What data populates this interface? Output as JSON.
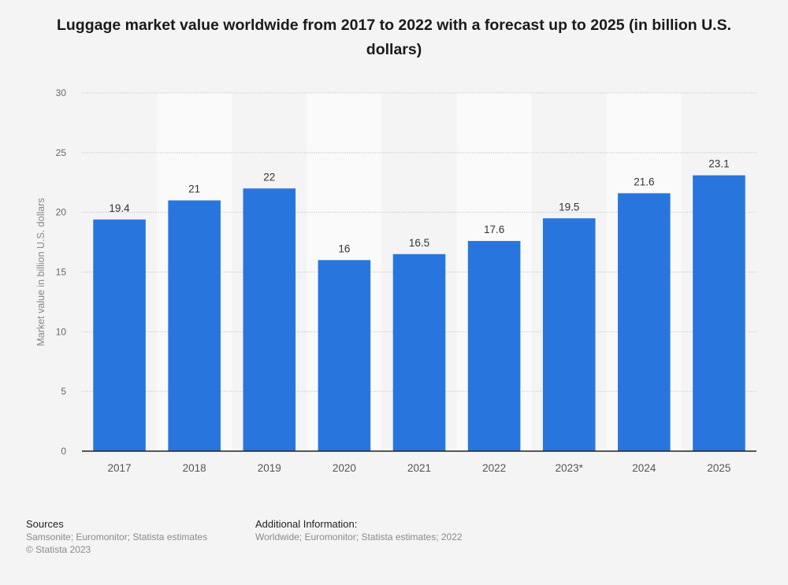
{
  "chart_data": {
    "type": "bar",
    "title": "Luggage market value worldwide from 2017 to 2022 with a forecast up to 2025 (in billion U.S. dollars)",
    "xlabel": "",
    "ylabel": "Market value in billion U.S. dollars",
    "categories": [
      "2017",
      "2018",
      "2019",
      "2020",
      "2021",
      "2022",
      "2023*",
      "2024",
      "2025"
    ],
    "values": [
      19.4,
      21,
      22,
      16,
      16.5,
      17.6,
      19.5,
      21.6,
      23.1
    ],
    "value_labels": [
      "19.4",
      "21",
      "22",
      "16",
      "16.5",
      "17.6",
      "19.5",
      "21.6",
      "23.1"
    ],
    "ylim": [
      0,
      30
    ],
    "yticks": [
      0,
      5,
      10,
      15,
      20,
      25,
      30
    ],
    "grid": true,
    "legend": "none",
    "bar_color": "#2876dd"
  },
  "footer": {
    "sources_heading": "Sources",
    "sources_text": "Samsonite; Euromonitor; Statista estimates",
    "copyright": "© Statista 2023",
    "additional_heading": "Additional Information:",
    "additional_text": "Worldwide; Euromonitor; Statista estimates; 2022"
  }
}
